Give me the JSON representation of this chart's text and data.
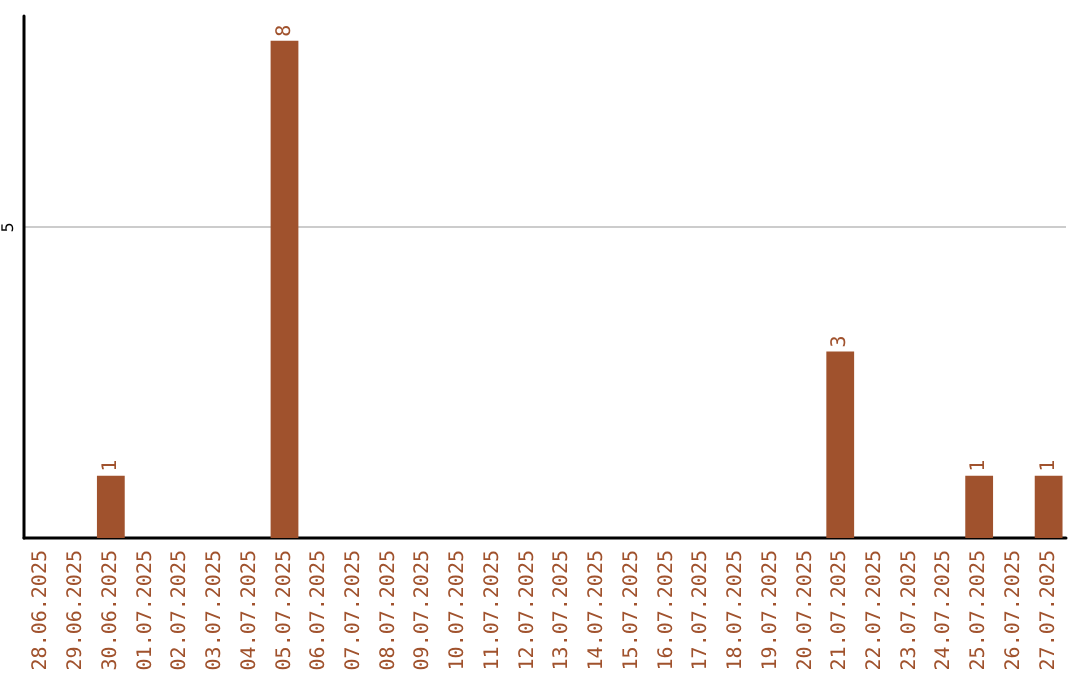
{
  "chart_data": {
    "type": "bar",
    "categories": [
      "28.06.2025",
      "29.06.2025",
      "30.06.2025",
      "01.07.2025",
      "02.07.2025",
      "03.07.2025",
      "04.07.2025",
      "05.07.2025",
      "06.07.2025",
      "07.07.2025",
      "08.07.2025",
      "09.07.2025",
      "10.07.2025",
      "11.07.2025",
      "12.07.2025",
      "13.07.2025",
      "14.07.2025",
      "15.07.2025",
      "16.07.2025",
      "17.07.2025",
      "18.07.2025",
      "19.07.2025",
      "20.07.2025",
      "21.07.2025",
      "22.07.2025",
      "23.07.2025",
      "24.07.2025",
      "25.07.2025",
      "26.07.2025",
      "27.07.2025"
    ],
    "values": [
      0,
      0,
      1,
      0,
      0,
      0,
      0,
      8,
      0,
      0,
      0,
      0,
      0,
      0,
      0,
      0,
      0,
      0,
      0,
      0,
      0,
      0,
      0,
      3,
      0,
      0,
      0,
      1,
      0,
      1
    ],
    "value_labels": [
      null,
      null,
      "1",
      null,
      null,
      null,
      null,
      "8",
      null,
      null,
      null,
      null,
      null,
      null,
      null,
      null,
      null,
      null,
      null,
      null,
      null,
      null,
      null,
      "3",
      null,
      null,
      null,
      "1",
      null,
      "1"
    ],
    "color": "#a0522d",
    "ylim": [
      0,
      8.4
    ],
    "yticks": [
      5
    ],
    "grid": "y"
  }
}
